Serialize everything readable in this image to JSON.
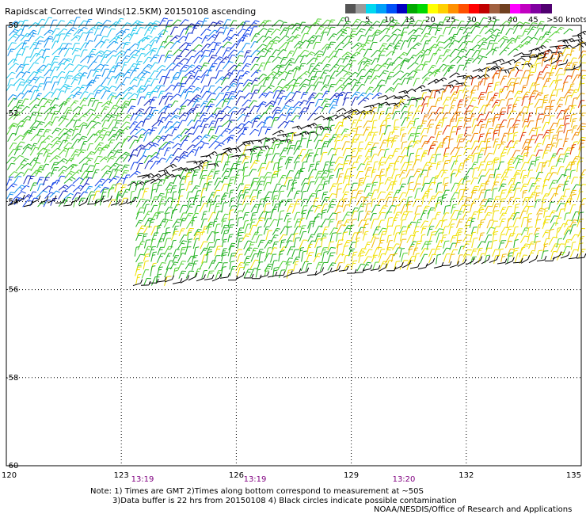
{
  "title": "Rapidscat Corrected Winds(12.5KM) 20150108 ascending",
  "scale": {
    "labels": [
      "0",
      "5",
      "10",
      "15",
      "20",
      "25",
      "30",
      "35",
      "40",
      "45"
    ],
    "unit_label": ">50 knots",
    "colors": [
      "#555555",
      "#9a9a9a",
      "#00d8f0",
      "#00a0f8",
      "#0050f8",
      "#0000c0",
      "#00a800",
      "#00d800",
      "#ffff00",
      "#ffd000",
      "#ff9000",
      "#ff5000",
      "#ff0000",
      "#c00000",
      "#a06040",
      "#704020",
      "#ff00ff",
      "#c000c0",
      "#8000a0",
      "#500070"
    ]
  },
  "axes": {
    "y_ticks": [
      "-50",
      "-52",
      "-54",
      "-56",
      "-58",
      "-60"
    ],
    "x_ticks": [
      "120",
      "123",
      "126",
      "129",
      "132",
      "135"
    ]
  },
  "times": [
    "13:19",
    "13:19",
    "13:20"
  ],
  "times_color": "#800080",
  "notes": {
    "line1": "Note: 1) Times are GMT 2)Times along bottom correspond to measurement at ~50S",
    "line2": "3)Data buffer is 22 hrs from 20150108 4) Black circles indicate possible contamination",
    "line3": "NOAA/NESDIS/Office of Research and Applications"
  }
}
